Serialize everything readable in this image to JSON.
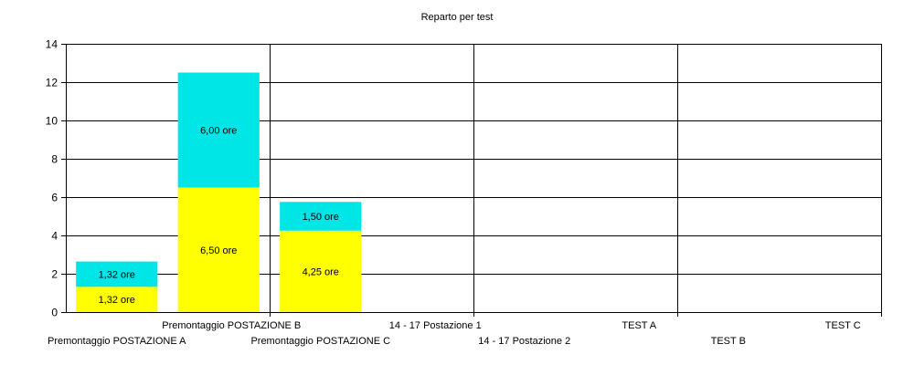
{
  "chart_data": {
    "type": "bar",
    "stacked": true,
    "title": "Reparto per test",
    "xlabel": "",
    "ylabel": "",
    "ylim": [
      0,
      14
    ],
    "yticks": [
      0,
      2,
      4,
      6,
      8,
      10,
      12,
      14
    ],
    "grid": true,
    "categories": [
      "Premontaggio POSTAZIONE A",
      "Premontaggio POSTAZIONE B",
      "Premontaggio POSTAZIONE C",
      "14 - 17 Postazione 1",
      "14 - 17 Postazione 2",
      "TEST A",
      "TEST B",
      "TEST C"
    ],
    "series": [
      {
        "color": "#ffff00",
        "values": [
          1.32,
          6.5,
          4.25,
          0,
          0,
          0,
          0,
          0
        ],
        "labels": [
          "1,32 ore",
          "6,50 ore",
          "4,25 ore",
          "",
          "",
          "",
          "",
          ""
        ]
      },
      {
        "color": "#00e5e5",
        "values": [
          1.32,
          6.0,
          1.5,
          0,
          0,
          0,
          0,
          0
        ],
        "labels": [
          "1,32 ore",
          "6,00 ore",
          "1,50 ore",
          "",
          "",
          "",
          "",
          ""
        ]
      }
    ]
  }
}
